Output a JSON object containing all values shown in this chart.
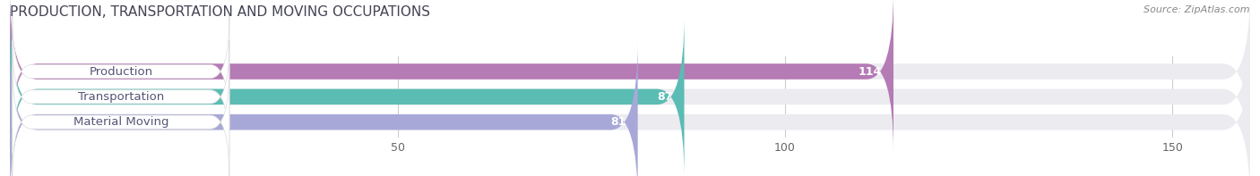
{
  "title": "PRODUCTION, TRANSPORTATION AND MOVING OCCUPATIONS",
  "source_text": "Source: ZipAtlas.com",
  "categories": [
    "Production",
    "Transportation",
    "Material Moving"
  ],
  "values": [
    114,
    87,
    81
  ],
  "bar_colors": [
    "#b57bb5",
    "#5bbcb4",
    "#a8a8d8"
  ],
  "bar_bg_color": "#ebebf0",
  "label_bg_color": "#ffffff",
  "xlim": [
    0,
    160
  ],
  "xticks": [
    50,
    100,
    150
  ],
  "title_fontsize": 11,
  "label_fontsize": 9.5,
  "value_fontsize": 9,
  "bar_height": 0.62,
  "fig_bg_color": "#ffffff",
  "label_text_color": "#555577",
  "value_text_color_inside": "#ffffff",
  "value_text_color_outside": "#666666"
}
